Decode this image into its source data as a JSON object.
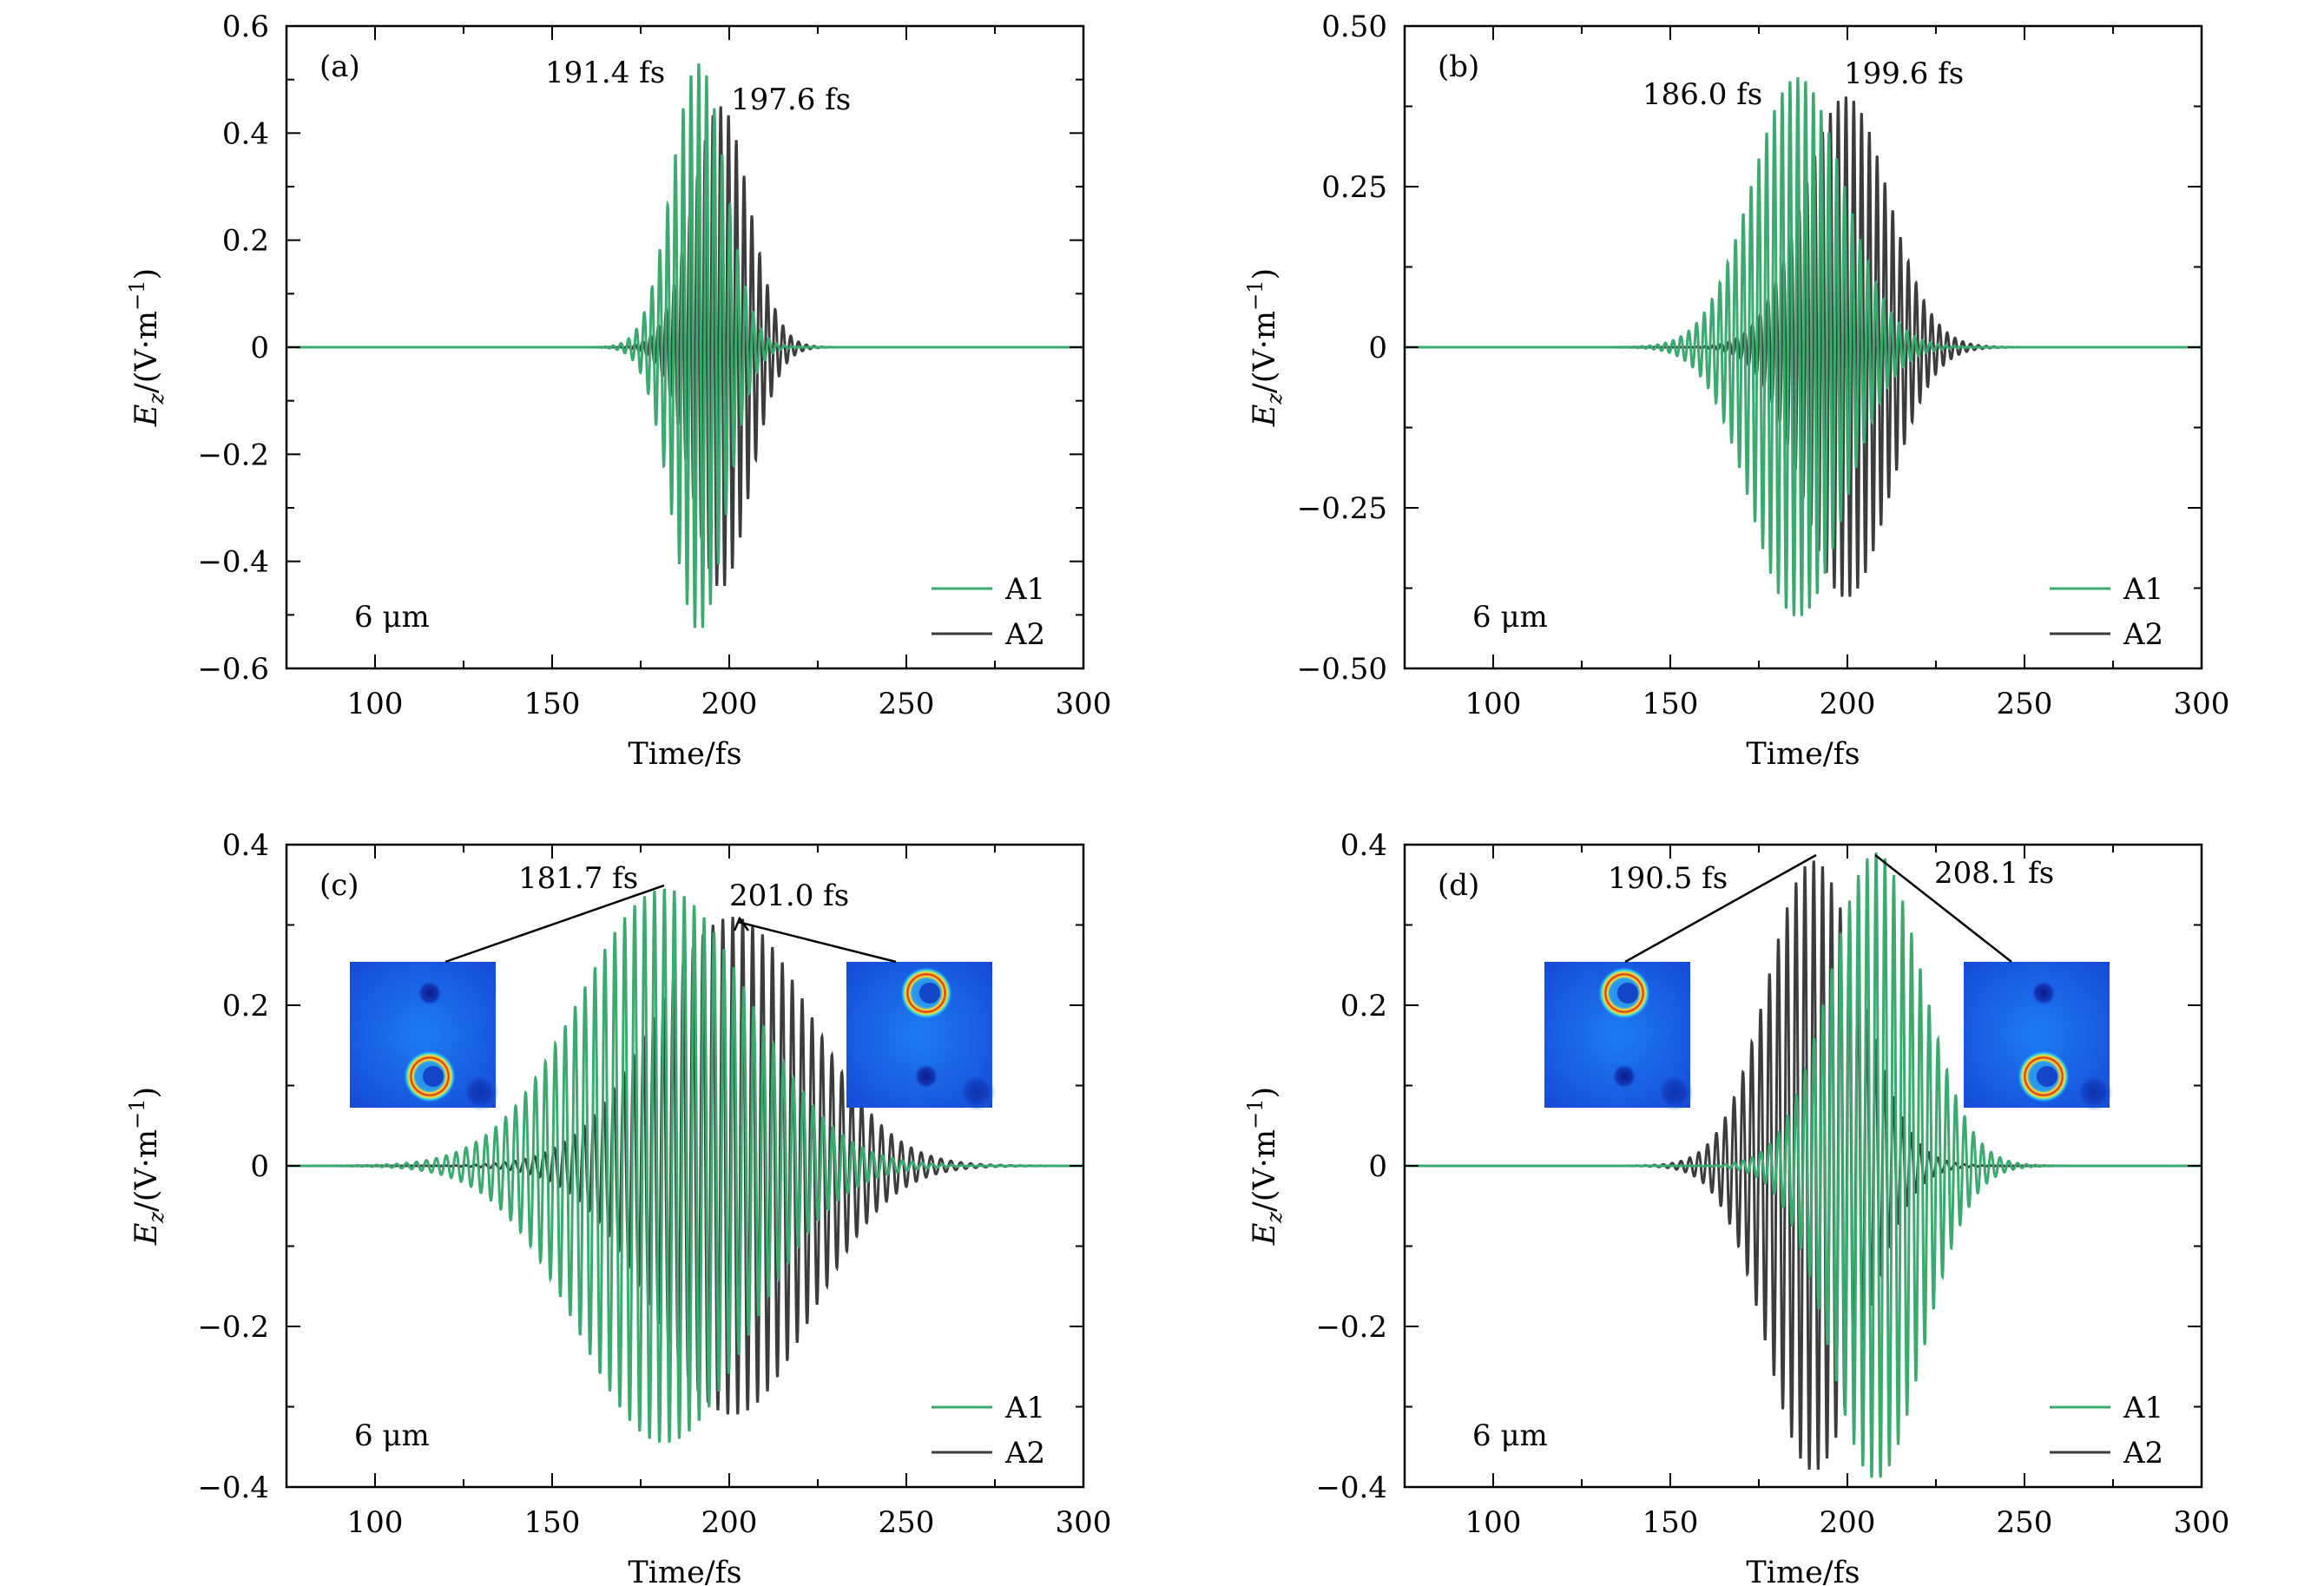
{
  "figure": {
    "xlabel": "Time/fs",
    "ylabel_main": "E",
    "ylabel_sub": "z",
    "ylabel_rest": "/(V·m",
    "ylabel_sup": "−1",
    "ylabel_close": ")",
    "colors": {
      "A1": "#3aaa6e",
      "A2": "#3c3c3c",
      "axis": "#000000"
    }
  },
  "chart_data": [
    {
      "type": "line",
      "panel": "(a)",
      "title": "(a)",
      "wavelength_label": "6 μm",
      "xlabel": "Time/fs",
      "ylabel": "Ez/(V·m−1)",
      "xlim": [
        75,
        300
      ],
      "ylim": [
        -0.6,
        0.6
      ],
      "xticks": [
        100,
        150,
        200,
        250,
        300
      ],
      "yticks": [
        -0.6,
        -0.4,
        -0.2,
        0,
        0.2,
        0.4,
        0.6
      ],
      "ytick_labels": [
        "−0.6",
        "−0.4",
        "−0.2",
        "0",
        "0.2",
        "0.4",
        "0.6"
      ],
      "legend": [
        "A1",
        "A2"
      ],
      "legend_position": "bottom-right",
      "series": [
        {
          "name": "A1",
          "peak_time": 191.4,
          "peak_amplitude": 0.53,
          "envelope_width": 7.5,
          "period": 2.2
        },
        {
          "name": "A2",
          "peak_time": 197.6,
          "peak_amplitude": 0.45,
          "envelope_width": 8.0,
          "period": 2.2
        }
      ],
      "annotations": [
        {
          "text": "191.4 fs",
          "time": 191.4,
          "series": "A1"
        },
        {
          "text": "197.6 fs",
          "time": 197.6,
          "series": "A2"
        }
      ]
    },
    {
      "type": "line",
      "panel": "(b)",
      "title": "(b)",
      "wavelength_label": "6 μm",
      "xlabel": "Time/fs",
      "ylabel": "Ez/(V·m−1)",
      "xlim": [
        75,
        300
      ],
      "ylim": [
        -0.5,
        0.5
      ],
      "xticks": [
        100,
        150,
        200,
        250,
        300
      ],
      "yticks": [
        -0.5,
        -0.25,
        0,
        0.25,
        0.5
      ],
      "ytick_labels": [
        "−0.50",
        "−0.25",
        "0",
        "0.25",
        "0.50"
      ],
      "legend": [
        "A1",
        "A2"
      ],
      "legend_position": "bottom-right",
      "series": [
        {
          "name": "A1",
          "peak_time": 186.0,
          "peak_amplitude": 0.42,
          "envelope_width": 13,
          "period": 2.2
        },
        {
          "name": "A2",
          "peak_time": 199.6,
          "peak_amplitude": 0.39,
          "envelope_width": 12,
          "period": 2.2
        }
      ],
      "annotations": [
        {
          "text": "186.0 fs",
          "time": 186.0,
          "series": "A1"
        },
        {
          "text": "199.6 fs",
          "time": 199.6,
          "series": "A2"
        }
      ]
    },
    {
      "type": "line",
      "panel": "(c)",
      "title": "(c)",
      "wavelength_label": "6 μm",
      "xlabel": "Time/fs",
      "ylabel": "Ez/(V·m−1)",
      "xlim": [
        75,
        300
      ],
      "ylim": [
        -0.4,
        0.4
      ],
      "xticks": [
        100,
        150,
        200,
        250,
        300
      ],
      "yticks": [
        -0.4,
        -0.2,
        0,
        0.2,
        0.4
      ],
      "ytick_labels": [
        "−0.4",
        "−0.2",
        "0",
        "0.2",
        "0.4"
      ],
      "legend": [
        "A1",
        "A2"
      ],
      "legend_position": "bottom-right",
      "series": [
        {
          "name": "A1",
          "peak_time": 181.7,
          "peak_amplitude": 0.345,
          "envelope_width": 24,
          "period": 2.8
        },
        {
          "name": "A2",
          "peak_time": 201.0,
          "peak_amplitude": 0.31,
          "envelope_width": 22,
          "period": 2.8
        }
      ],
      "annotations": [
        {
          "text": "181.7 fs",
          "time": 181.7,
          "series": "A1",
          "inset": "left"
        },
        {
          "text": "201.0 fs",
          "time": 201.0,
          "series": "A2",
          "inset": "right"
        }
      ]
    },
    {
      "type": "line",
      "panel": "(d)",
      "title": "(d)",
      "wavelength_label": "6 μm",
      "xlabel": "Time/fs",
      "ylabel": "Ez/(V·m−1)",
      "xlim": [
        75,
        300
      ],
      "ylim": [
        -0.4,
        0.4
      ],
      "xticks": [
        100,
        150,
        200,
        250,
        300
      ],
      "yticks": [
        -0.4,
        -0.2,
        0,
        0.2,
        0.4
      ],
      "ytick_labels": [
        "−0.4",
        "−0.2",
        "0",
        "0.2",
        "0.4"
      ],
      "legend": [
        "A1",
        "A2"
      ],
      "legend_position": "bottom-right",
      "series": [
        {
          "name": "A1",
          "peak_time": 208.1,
          "peak_amplitude": 0.39,
          "envelope_width": 13,
          "period": 2.5
        },
        {
          "name": "A2",
          "peak_time": 190.5,
          "peak_amplitude": 0.38,
          "envelope_width": 13,
          "period": 2.5
        }
      ],
      "annotations": [
        {
          "text": "190.5 fs",
          "time": 190.5,
          "series": "A2",
          "inset": "left"
        },
        {
          "text": "208.1 fs",
          "time": 208.1,
          "series": "A1",
          "inset": "right"
        }
      ]
    }
  ]
}
